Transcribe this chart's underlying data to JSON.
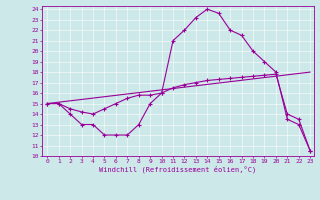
{
  "xlabel": "Windchill (Refroidissement éolien,°C)",
  "bg_color": "#cce8e8",
  "line_color": "#990099",
  "xlim": [
    -0.5,
    23.3
  ],
  "ylim": [
    10,
    24.3
  ],
  "xticks": [
    0,
    1,
    2,
    3,
    4,
    5,
    6,
    7,
    8,
    9,
    10,
    11,
    12,
    13,
    14,
    15,
    16,
    17,
    18,
    19,
    20,
    21,
    22,
    23
  ],
  "yticks": [
    10,
    11,
    12,
    13,
    14,
    15,
    16,
    17,
    18,
    19,
    20,
    21,
    22,
    23,
    24
  ],
  "curve1_x": [
    0,
    1,
    2,
    3,
    4,
    5,
    6,
    7,
    8,
    9,
    10,
    11,
    12,
    13,
    14,
    15,
    16,
    17,
    18,
    19,
    20,
    21,
    22,
    23
  ],
  "curve1_y": [
    15,
    15,
    14,
    13,
    13,
    12,
    12,
    12,
    13,
    15,
    16,
    21,
    22,
    23.2,
    24,
    23.6,
    22,
    21.5,
    20,
    19,
    18,
    13.5,
    13,
    10.5
  ],
  "curve2_x": [
    0,
    1,
    2,
    3,
    4,
    5,
    6,
    7,
    8,
    9,
    10,
    11,
    12,
    13,
    14,
    15,
    16,
    17,
    18,
    19,
    20,
    21,
    22,
    23
  ],
  "curve2_y": [
    15,
    15,
    14.5,
    14.2,
    14,
    14.5,
    15,
    15.5,
    15.8,
    15.8,
    16,
    16.5,
    16.8,
    17,
    17.2,
    17.3,
    17.4,
    17.5,
    17.6,
    17.7,
    17.8,
    14,
    13.5,
    10.5
  ],
  "curve3_x": [
    0,
    23
  ],
  "curve3_y": [
    15,
    18
  ]
}
